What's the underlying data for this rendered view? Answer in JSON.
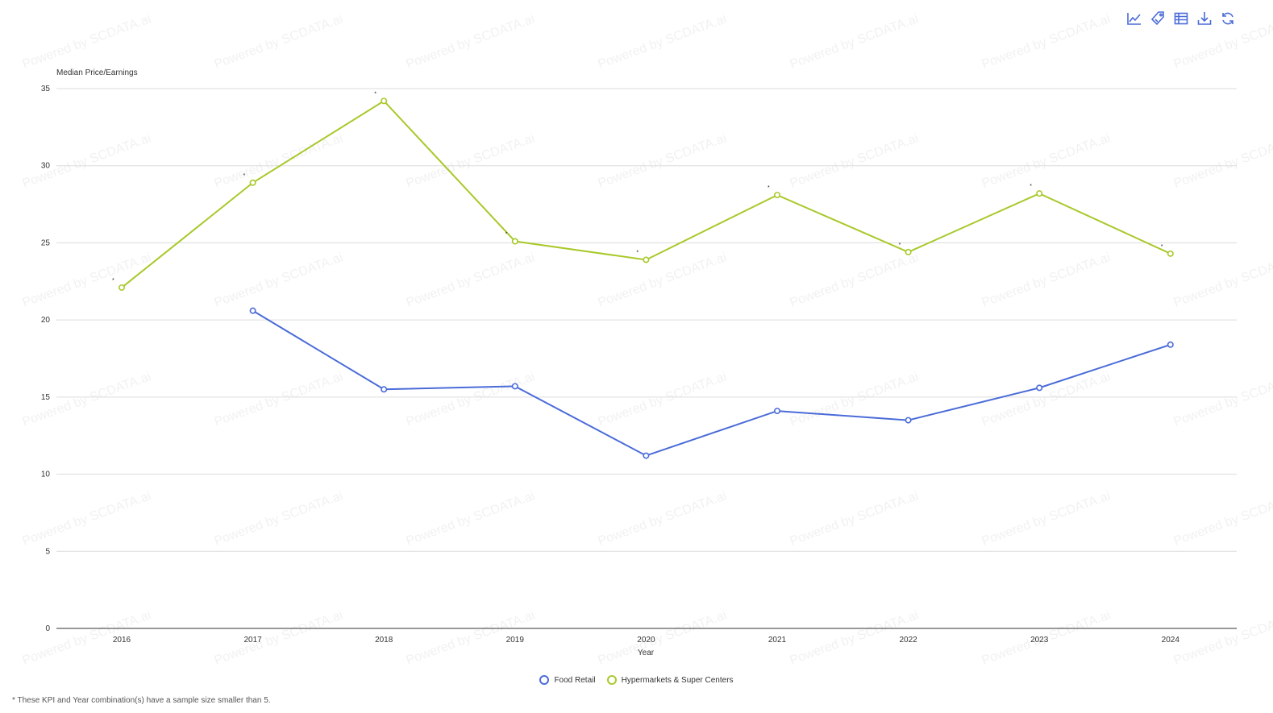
{
  "toolbar": {
    "icons": [
      "line-chart-icon",
      "tag-icon",
      "table-icon",
      "download-icon",
      "refresh-icon"
    ],
    "color": "#4a6bd8"
  },
  "watermark": {
    "text": "Powered by SCDATA.ai"
  },
  "footnote": "* These KPI and Year combination(s) have a sample size smaller than 5.",
  "chart_data": {
    "type": "line",
    "title": "",
    "ylabel": "Median Price/Earnings",
    "xlabel": "Year",
    "ylim": [
      0,
      35
    ],
    "yticks": [
      0,
      5,
      10,
      15,
      20,
      25,
      30,
      35
    ],
    "grid": true,
    "legend": "bottom-center",
    "categories": [
      "2016",
      "2017",
      "2018",
      "2019",
      "2020",
      "2021",
      "2022",
      "2023",
      "2024"
    ],
    "series": [
      {
        "name": "Food Retail",
        "color": "#4a6bd8",
        "values": [
          null,
          20.6,
          15.5,
          15.7,
          11.2,
          14.1,
          13.5,
          15.6,
          18.4
        ],
        "flags": [
          "",
          "",
          "",
          "",
          "",
          "",
          "",
          "",
          ""
        ]
      },
      {
        "name": "Hypermarkets & Super Centers",
        "color": "#a8c92a",
        "values": [
          22.1,
          28.9,
          34.2,
          25.1,
          23.9,
          28.1,
          24.4,
          28.2,
          24.3
        ],
        "flags": [
          "*",
          "*",
          "*",
          "*",
          "*",
          "*",
          "*",
          "*",
          "*"
        ]
      }
    ]
  }
}
